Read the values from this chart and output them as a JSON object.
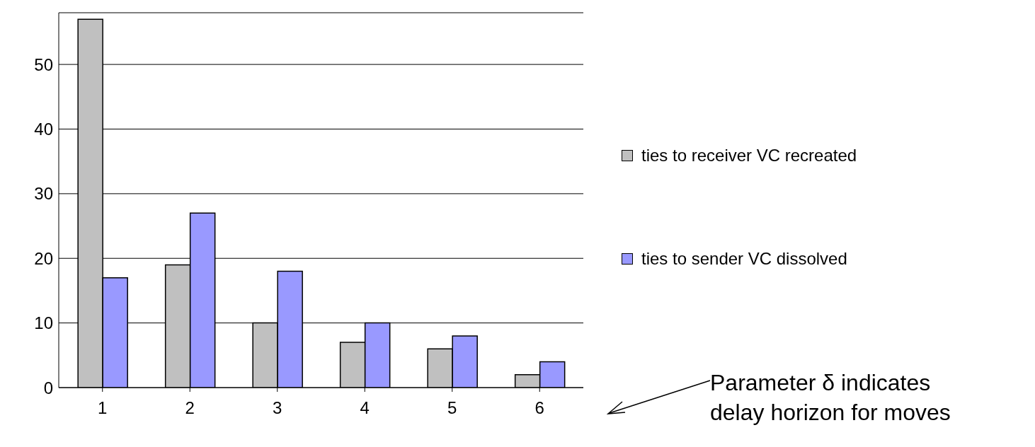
{
  "chart_data": {
    "type": "bar",
    "categories": [
      "1",
      "2",
      "3",
      "4",
      "5",
      "6"
    ],
    "series": [
      {
        "name": "ties to receiver VC recreated",
        "color": "#c0c0c0",
        "values": [
          57,
          19,
          10,
          7,
          6,
          2
        ]
      },
      {
        "name": "ties to sender VC dissolved",
        "color": "#9999ff",
        "values": [
          17,
          27,
          18,
          10,
          8,
          4
        ]
      }
    ],
    "ylim": [
      0,
      58
    ],
    "yticks": [
      0,
      10,
      20,
      30,
      40,
      50
    ],
    "grid": "y",
    "legend": "right",
    "annotations": [
      "Parameter δ indicates delay horizon for moves"
    ]
  }
}
